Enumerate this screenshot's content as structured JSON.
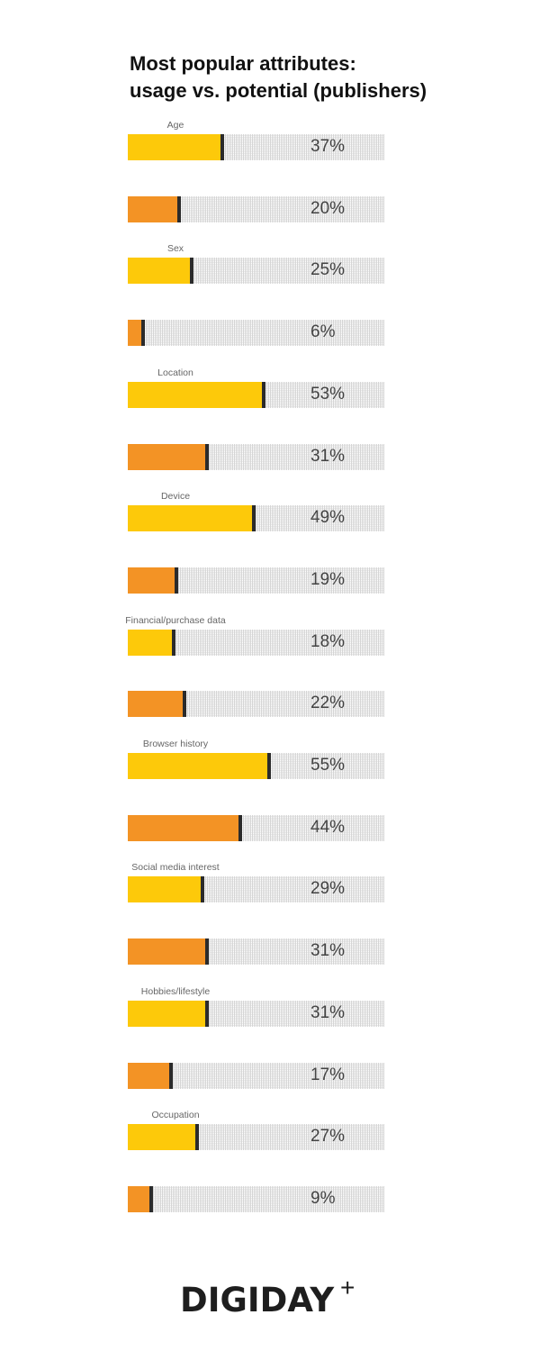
{
  "chart_data": {
    "type": "bar",
    "orientation": "horizontal",
    "title": [
      "Most popular attributes:",
      "usage vs. potential (publishers)"
    ],
    "xlim": [
      0,
      100
    ],
    "unit": "%",
    "categories": [
      "Age",
      "Sex",
      "Location",
      "Device",
      "Financial/purchase data",
      "Browser history",
      "Social media interest",
      "Hobbies/lifestyle",
      "Occupation"
    ],
    "series": [
      {
        "color": "#FDC90A",
        "values": [
          37,
          25,
          53,
          49,
          18,
          55,
          29,
          31,
          27
        ]
      },
      {
        "color": "#F39325",
        "values": [
          20,
          6,
          31,
          19,
          22,
          44,
          31,
          17,
          9
        ]
      }
    ],
    "track_color": "#e3e3e3",
    "marker_color": "#2b2b2b"
  },
  "brand": {
    "logo": "DIGIDAY",
    "logo_suffix": "+"
  }
}
